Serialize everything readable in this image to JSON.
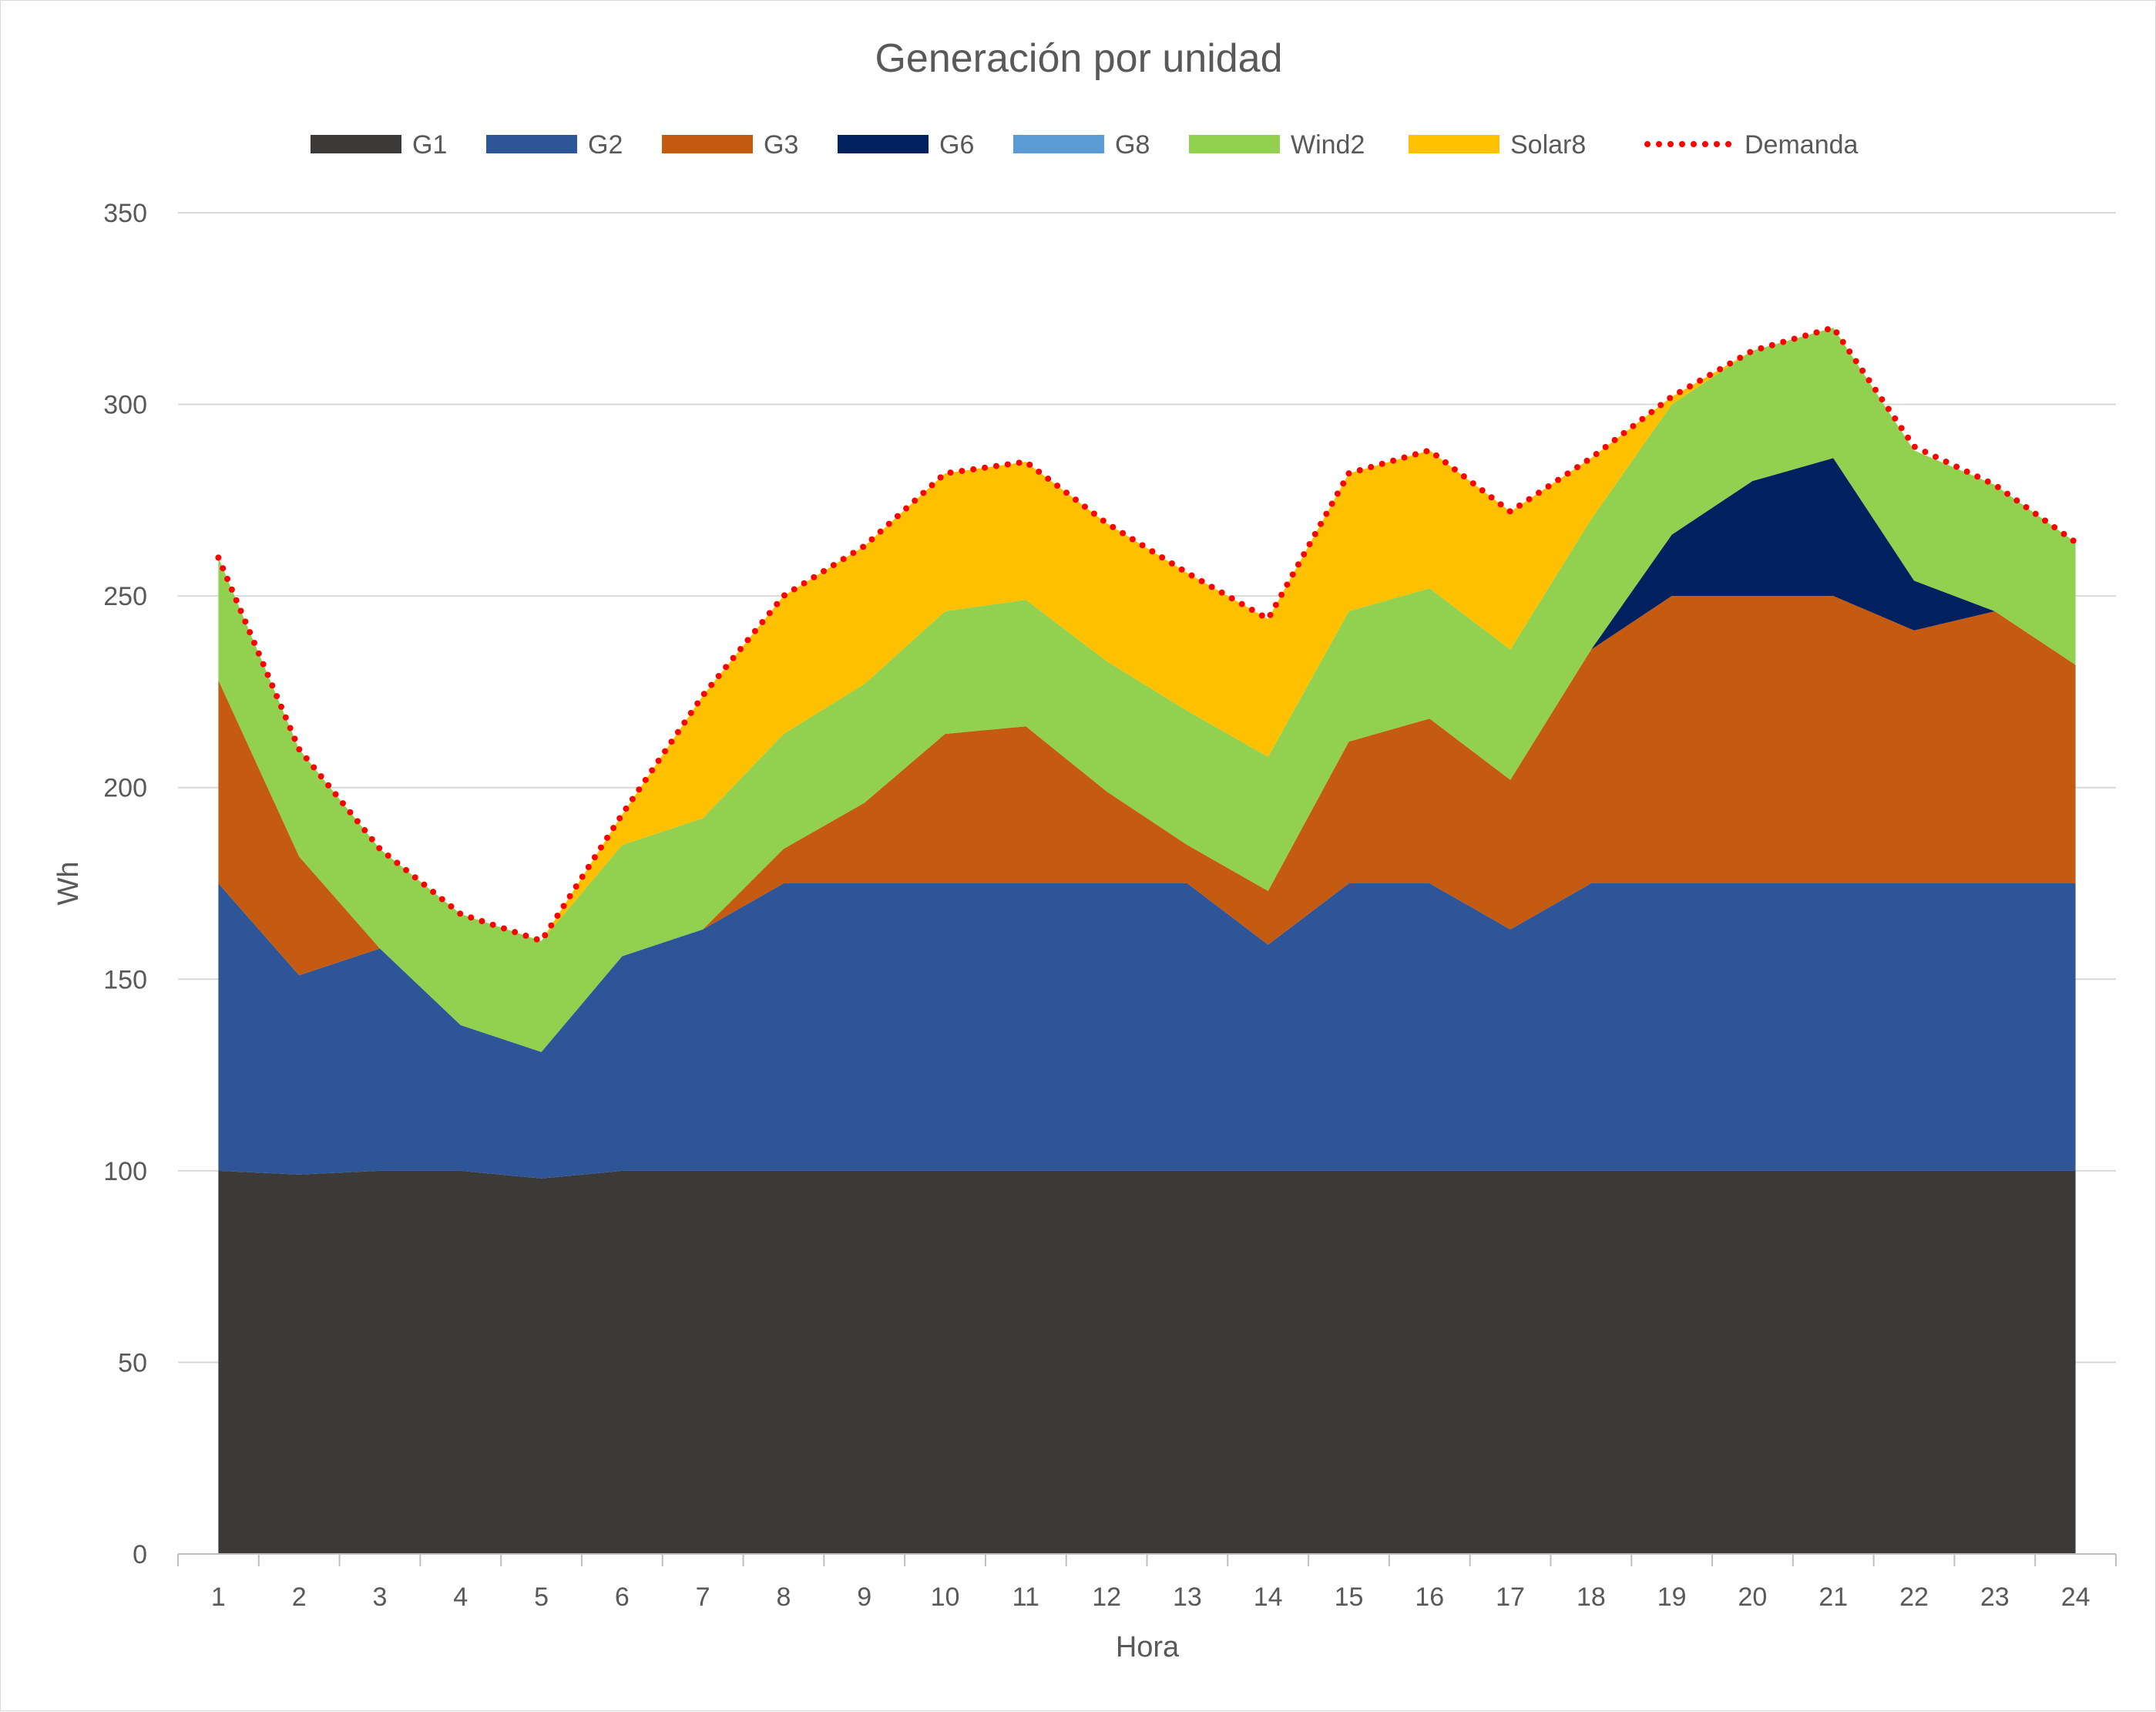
{
  "chart_data": {
    "type": "area",
    "stacked": true,
    "title": "Generación por unidad",
    "xlabel": "Hora",
    "ylabel": "Wh",
    "ylim": [
      0,
      350
    ],
    "yticks": [
      0,
      50,
      100,
      150,
      200,
      250,
      300,
      350
    ],
    "legend_position": "top",
    "grid": true,
    "x": [
      "1",
      "2",
      "3",
      "4",
      "5",
      "6",
      "7",
      "8",
      "9",
      "10",
      "11",
      "12",
      "13",
      "14",
      "15",
      "16",
      "17",
      "18",
      "19",
      "20",
      "21",
      "22",
      "23",
      "24"
    ],
    "series": [
      {
        "name": "G1",
        "color": "#3b3a39",
        "values": [
          100,
          99,
          100,
          100,
          98,
          100,
          100,
          100,
          100,
          100,
          100,
          100,
          100,
          100,
          100,
          100,
          100,
          100,
          100,
          100,
          100,
          100,
          100,
          100
        ]
      },
      {
        "name": "G2",
        "color": "#2e5597",
        "values": [
          75,
          52,
          58,
          38,
          33,
          56,
          63,
          75,
          75,
          75,
          75,
          75,
          75,
          59,
          75,
          75,
          63,
          75,
          75,
          75,
          75,
          75,
          75,
          75
        ]
      },
      {
        "name": "G3",
        "color": "#c55a11",
        "values": [
          53,
          31,
          0,
          0,
          0,
          0,
          0,
          9,
          21,
          39,
          41,
          24,
          10,
          14,
          37,
          43,
          39,
          61,
          75,
          75,
          75,
          66,
          71,
          57
        ]
      },
      {
        "name": "G6",
        "color": "#002060",
        "values": [
          0,
          0,
          0,
          0,
          0,
          0,
          0,
          0,
          0,
          0,
          0,
          0,
          0,
          0,
          0,
          0,
          0,
          0,
          16,
          30,
          36,
          13,
          0,
          0
        ]
      },
      {
        "name": "G8",
        "color": "#5b9bd5",
        "values": [
          0,
          0,
          0,
          0,
          0,
          0,
          0,
          0,
          0,
          0,
          0,
          0,
          0,
          0,
          0,
          0,
          0,
          0,
          0,
          0,
          0,
          0,
          0,
          0
        ]
      },
      {
        "name": "Wind2",
        "color": "#92d050",
        "values": [
          32,
          28,
          26,
          29,
          29,
          29,
          29,
          30,
          31,
          32,
          33,
          34,
          35,
          35,
          34,
          34,
          34,
          34,
          34,
          34,
          34,
          34,
          33,
          32
        ]
      },
      {
        "name": "Solar8",
        "color": "#ffc000",
        "values": [
          0,
          0,
          0,
          0,
          0,
          8,
          32,
          36,
          36,
          36,
          36,
          36,
          36,
          36,
          36,
          36,
          36,
          16,
          2,
          0,
          0,
          0,
          0,
          0
        ]
      }
    ],
    "demand": {
      "name": "Demanda",
      "color": "#ff0000",
      "values": [
        260,
        210,
        184,
        167,
        160,
        193,
        224,
        250,
        263,
        282,
        285,
        269,
        256,
        244,
        282,
        288,
        272,
        286,
        302,
        314,
        320,
        289,
        279,
        264
      ]
    }
  }
}
